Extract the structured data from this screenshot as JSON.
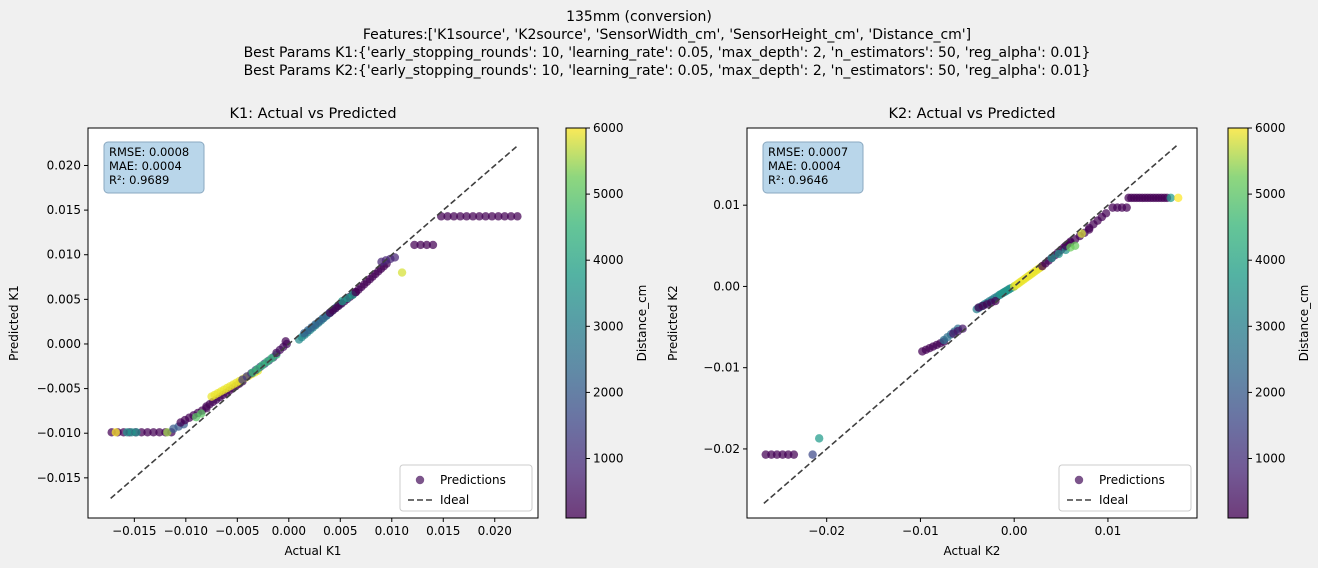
{
  "suptitle": [
    "135mm (conversion)",
    "Features:['K1source', 'K2source', 'SensorWidth_cm', 'SensorHeight_cm', 'Distance_cm']",
    "Best Params K1:{'early_stopping_rounds': 10, 'learning_rate': 0.05, 'max_depth': 2, 'n_estimators': 50, 'reg_alpha': 0.01}",
    "Best Params K2:{'early_stopping_rounds': 10, 'learning_rate': 0.05, 'max_depth': 2, 'n_estimators': 50, 'reg_alpha': 0.01}"
  ],
  "colors": {
    "background": "#f0f0f0",
    "plot_bg": "#ffffff",
    "stats_box_fill": "#b9d6ea",
    "stats_box_edge": "#8aa8c0",
    "ideal_line": "#404040",
    "legend_marker": "#5b2a6e"
  },
  "chart_data": [
    {
      "type": "scatter",
      "title": "K1: Actual vs Predicted",
      "xlabel": "Actual K1",
      "ylabel": "Predicted K1",
      "xlim": [
        -0.0195,
        0.0242
      ],
      "ylim": [
        -0.0195,
        0.0242
      ],
      "xticks": [
        -0.015,
        -0.01,
        -0.005,
        0.0,
        0.005,
        0.01,
        0.015,
        0.02
      ],
      "xtick_labels": [
        "−0.015",
        "−0.010",
        "−0.005",
        "0.000",
        "0.005",
        "0.010",
        "0.015",
        "0.020"
      ],
      "yticks": [
        -0.015,
        -0.01,
        -0.005,
        0.0,
        0.005,
        0.01,
        0.015,
        0.02
      ],
      "ytick_labels": [
        "−0.015",
        "−0.010",
        "−0.005",
        "0.000",
        "0.005",
        "0.010",
        "0.015",
        "0.020"
      ],
      "ideal": [
        [
          -0.0173,
          -0.0173
        ],
        [
          0.0222,
          0.0222
        ]
      ],
      "stats": [
        "RMSE: 0.0008",
        "MAE: 0.0004",
        "R²: 0.9689"
      ],
      "legend": {
        "position": "lower right",
        "entries": [
          "Predictions",
          "Ideal"
        ]
      },
      "colorbar": {
        "label": "Distance_cm",
        "range": [
          100,
          6000
        ],
        "ticks": [
          1000,
          2000,
          3000,
          4000,
          5000,
          6000
        ],
        "tick_labels": [
          "1000",
          "2000",
          "3000",
          "4000",
          "5000",
          "6000"
        ]
      },
      "grid": false,
      "point_groups": [
        {
          "x0": -0.0172,
          "x1": -0.0114,
          "y0": -0.0099,
          "y1": -0.0099,
          "n": 11,
          "c": 100
        },
        {
          "x0": -0.0168,
          "x1": -0.0168,
          "y0": -0.0099,
          "y1": -0.0099,
          "n": 1,
          "c": 6000
        },
        {
          "x0": -0.0157,
          "x1": -0.0148,
          "y0": -0.0099,
          "y1": -0.0099,
          "n": 3,
          "c": 3500
        },
        {
          "x0": -0.0118,
          "x1": -0.0118,
          "y0": -0.0099,
          "y1": -0.0099,
          "n": 1,
          "c": 5500
        },
        {
          "x0": -0.0112,
          "x1": -0.0102,
          "y0": -0.0095,
          "y1": -0.009,
          "n": 3,
          "c": 2000
        },
        {
          "x0": -0.0105,
          "x1": -0.008,
          "y0": -0.0088,
          "y1": -0.0072,
          "n": 7,
          "c": 100
        },
        {
          "x0": -0.009,
          "x1": -0.0085,
          "y0": -0.0082,
          "y1": -0.0078,
          "n": 2,
          "c": 5000
        },
        {
          "x0": -0.008,
          "x1": -0.0045,
          "y0": -0.007,
          "y1": -0.0042,
          "n": 12,
          "c": 150
        },
        {
          "x0": -0.0075,
          "x1": -0.003,
          "y0": -0.0059,
          "y1": -0.003,
          "n": 16,
          "c": 5900
        },
        {
          "x0": -0.0045,
          "x1": -0.0015,
          "y0": -0.004,
          "y1": -0.0015,
          "n": 8,
          "c": 1200
        },
        {
          "x0": -0.0035,
          "x1": -0.0012,
          "y0": -0.0032,
          "y1": -0.0012,
          "n": 6,
          "c": 4500
        },
        {
          "x0": -0.0012,
          "x1": -0.0002,
          "y0": -0.001,
          "y1": 0.0,
          "n": 4,
          "c": 300
        },
        {
          "x0": -0.0003,
          "x1": -0.0003,
          "y0": 0.0003,
          "y1": 0.0003,
          "n": 1,
          "c": 150
        },
        {
          "x0": 0.001,
          "x1": 0.005,
          "y0": 0.0005,
          "y1": 0.0045,
          "n": 16,
          "c": 3300
        },
        {
          "x0": 0.0015,
          "x1": 0.004,
          "y0": 0.0012,
          "y1": 0.0035,
          "n": 8,
          "c": 2200
        },
        {
          "x0": 0.004,
          "x1": 0.0065,
          "y0": 0.0035,
          "y1": 0.0058,
          "n": 10,
          "c": 100
        },
        {
          "x0": 0.0052,
          "x1": 0.0062,
          "y0": 0.0048,
          "y1": 0.0055,
          "n": 3,
          "c": 3800
        },
        {
          "x0": 0.0065,
          "x1": 0.0095,
          "y0": 0.0058,
          "y1": 0.009,
          "n": 12,
          "c": 100
        },
        {
          "x0": 0.009,
          "x1": 0.0103,
          "y0": 0.0092,
          "y1": 0.0097,
          "n": 4,
          "c": 800
        },
        {
          "x0": 0.011,
          "x1": 0.011,
          "y0": 0.008,
          "y1": 0.008,
          "n": 1,
          "c": 5800
        },
        {
          "x0": 0.0122,
          "x1": 0.014,
          "y0": 0.0111,
          "y1": 0.0111,
          "n": 4,
          "c": 100
        },
        {
          "x0": 0.0148,
          "x1": 0.0222,
          "y0": 0.0143,
          "y1": 0.0143,
          "n": 13,
          "c": 100
        }
      ]
    },
    {
      "type": "scatter",
      "title": "K2: Actual vs Predicted",
      "xlabel": "Actual K2",
      "ylabel": "Predicted K2",
      "xlim": [
        -0.0285,
        0.0195
      ],
      "ylim": [
        -0.0285,
        0.0195
      ],
      "xticks": [
        -0.02,
        -0.01,
        0.0,
        0.01
      ],
      "xtick_labels": [
        "−0.02",
        "−0.01",
        "0.00",
        "0.01"
      ],
      "yticks": [
        -0.02,
        -0.01,
        0.0,
        0.01
      ],
      "ytick_labels": [
        "−0.02",
        "−0.01",
        "0.00",
        "0.01"
      ],
      "ideal": [
        [
          -0.0267,
          -0.0267
        ],
        [
          0.0175,
          0.0175
        ]
      ],
      "stats": [
        "RMSE: 0.0007",
        "MAE: 0.0004",
        "R²: 0.9646"
      ],
      "legend": {
        "position": "lower right",
        "entries": [
          "Predictions",
          "Ideal"
        ]
      },
      "colorbar": {
        "label": "Distance_cm",
        "range": [
          100,
          6000
        ],
        "ticks": [
          1000,
          2000,
          3000,
          4000,
          5000,
          6000
        ],
        "tick_labels": [
          "1000",
          "2000",
          "3000",
          "4000",
          "5000",
          "6000"
        ]
      },
      "grid": false,
      "point_groups": [
        {
          "x0": -0.0265,
          "x1": -0.0235,
          "y0": -0.0207,
          "y1": -0.0207,
          "n": 6,
          "c": 100
        },
        {
          "x0": -0.0215,
          "x1": -0.0215,
          "y0": -0.0207,
          "y1": -0.0207,
          "n": 1,
          "c": 1600
        },
        {
          "x0": -0.0208,
          "x1": -0.0208,
          "y0": -0.0187,
          "y1": -0.0187,
          "n": 1,
          "c": 3700
        },
        {
          "x0": -0.0098,
          "x1": -0.0075,
          "y0": -0.008,
          "y1": -0.0068,
          "n": 7,
          "c": 100
        },
        {
          "x0": -0.0075,
          "x1": -0.006,
          "y0": -0.0066,
          "y1": -0.0052,
          "n": 5,
          "c": 2500
        },
        {
          "x0": -0.0065,
          "x1": -0.0055,
          "y0": -0.0058,
          "y1": -0.0052,
          "n": 3,
          "c": 500
        },
        {
          "x0": -0.004,
          "x1": -0.0005,
          "y0": -0.0028,
          "y1": -0.0003,
          "n": 14,
          "c": 3000
        },
        {
          "x0": -0.0038,
          "x1": -0.002,
          "y0": -0.0026,
          "y1": -0.0018,
          "n": 5,
          "c": 150
        },
        {
          "x0": -0.0015,
          "x1": 0.0,
          "y0": -0.001,
          "y1": 0.0,
          "n": 6,
          "c": 3600
        },
        {
          "x0": 0.0,
          "x1": 0.003,
          "y0": 0.0,
          "y1": 0.0025,
          "n": 16,
          "c": 5900
        },
        {
          "x0": 0.003,
          "x1": 0.006,
          "y0": 0.0025,
          "y1": 0.0055,
          "n": 10,
          "c": 100
        },
        {
          "x0": 0.004,
          "x1": 0.0055,
          "y0": 0.0035,
          "y1": 0.0045,
          "n": 3,
          "c": 3500
        },
        {
          "x0": 0.0055,
          "x1": 0.008,
          "y0": 0.005,
          "y1": 0.007,
          "n": 6,
          "c": 100
        },
        {
          "x0": 0.006,
          "x1": 0.0065,
          "y0": 0.0048,
          "y1": 0.005,
          "n": 2,
          "c": 5200
        },
        {
          "x0": 0.008,
          "x1": 0.0098,
          "y0": 0.0072,
          "y1": 0.009,
          "n": 5,
          "c": 100
        },
        {
          "x0": 0.0072,
          "x1": 0.0072,
          "y0": 0.0065,
          "y1": 0.0065,
          "n": 1,
          "c": 5800
        },
        {
          "x0": 0.0105,
          "x1": 0.012,
          "y0": 0.0097,
          "y1": 0.0097,
          "n": 4,
          "c": 100
        },
        {
          "x0": 0.0122,
          "x1": 0.0163,
          "y0": 0.0109,
          "y1": 0.0109,
          "n": 15,
          "c": 100
        },
        {
          "x0": 0.0167,
          "x1": 0.0167,
          "y0": 0.0109,
          "y1": 0.0109,
          "n": 1,
          "c": 3700
        },
        {
          "x0": 0.0175,
          "x1": 0.0175,
          "y0": 0.0109,
          "y1": 0.0109,
          "n": 1,
          "c": 6000
        }
      ]
    }
  ]
}
